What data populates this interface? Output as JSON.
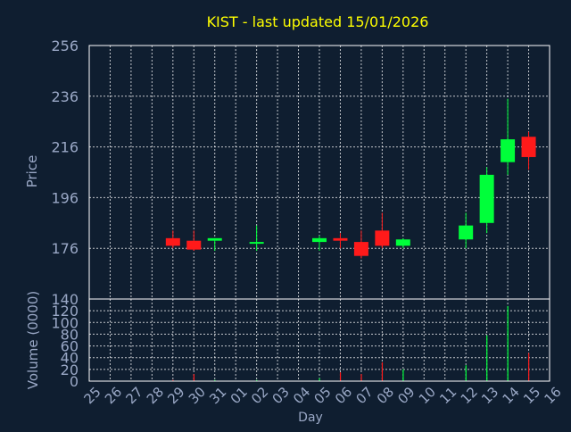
{
  "chart_data": {
    "type": "candlestick",
    "title": "KIST - last updated 15/01/2026",
    "colors": {
      "background": "#0f1e30",
      "frame": "#ffffff",
      "grid": "#ffffff",
      "title": "#ffff00",
      "tick_label": "#9aa8c6",
      "up": "#00ff3a",
      "down": "#ff1a1a"
    },
    "grid": true,
    "x": {
      "label": "Day",
      "ticks": [
        "25",
        "26",
        "27",
        "28",
        "29",
        "30",
        "31",
        "01",
        "02",
        "03",
        "04",
        "05",
        "06",
        "07",
        "08",
        "09",
        "10",
        "11",
        "12",
        "13",
        "14",
        "15",
        "16"
      ]
    },
    "price_panel": {
      "ylabel": "Price",
      "ylim": [
        156,
        256
      ],
      "yticks": [
        176,
        196,
        216,
        236,
        256
      ],
      "candles": [
        {
          "x": "29",
          "open": 180,
          "high": 183,
          "low": 176,
          "close": 177
        },
        {
          "x": "30",
          "open": 179,
          "high": 183,
          "low": 175,
          "close": 175.5
        },
        {
          "x": "31",
          "open": 179,
          "high": 180,
          "low": 175,
          "close": 180
        },
        {
          "x": "02",
          "open": 178.5,
          "high": 185,
          "low": 175,
          "close": 178.5
        },
        {
          "x": "05",
          "open": 178.5,
          "high": 181,
          "low": 175,
          "close": 180
        },
        {
          "x": "06",
          "open": 180,
          "high": 182,
          "low": 176,
          "close": 179
        },
        {
          "x": "07",
          "open": 178.5,
          "high": 183,
          "low": 172,
          "close": 173
        },
        {
          "x": "08",
          "open": 183,
          "high": 190,
          "low": 176,
          "close": 177
        },
        {
          "x": "09",
          "open": 177,
          "high": 180,
          "low": 176,
          "close": 179.5
        },
        {
          "x": "12",
          "open": 179.5,
          "high": 190,
          "low": 176,
          "close": 185
        },
        {
          "x": "13",
          "open": 186,
          "high": 208,
          "low": 182,
          "close": 205
        },
        {
          "x": "14",
          "open": 210,
          "high": 235,
          "low": 205,
          "close": 219
        },
        {
          "x": "15",
          "open": 220,
          "high": 222,
          "low": 207,
          "close": 212
        }
      ]
    },
    "volume_panel": {
      "ylabel": "Volume (0000)",
      "ylim": [
        0,
        140
      ],
      "yticks": [
        0,
        20,
        40,
        60,
        80,
        100,
        120,
        140
      ],
      "bars": [
        {
          "x": "29",
          "value": 2,
          "dir": "down"
        },
        {
          "x": "30",
          "value": 12,
          "dir": "down"
        },
        {
          "x": "31",
          "value": 2,
          "dir": "up"
        },
        {
          "x": "02",
          "value": 2,
          "dir": "up"
        },
        {
          "x": "05",
          "value": 5,
          "dir": "up"
        },
        {
          "x": "06",
          "value": 15,
          "dir": "down"
        },
        {
          "x": "07",
          "value": 12,
          "dir": "down"
        },
        {
          "x": "08",
          "value": 32,
          "dir": "down"
        },
        {
          "x": "09",
          "value": 20,
          "dir": "up"
        },
        {
          "x": "12",
          "value": 27,
          "dir": "up"
        },
        {
          "x": "13",
          "value": 78,
          "dir": "up"
        },
        {
          "x": "14",
          "value": 128,
          "dir": "up"
        },
        {
          "x": "15",
          "value": 48,
          "dir": "down"
        }
      ]
    }
  }
}
